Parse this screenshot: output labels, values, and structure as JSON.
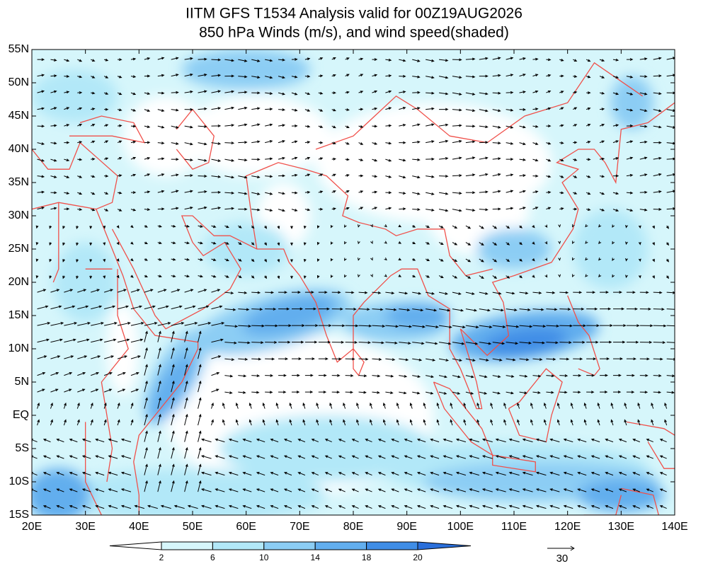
{
  "map": {
    "title": "IITM GFS T1534 Analysis valid for 00Z19AUG2026",
    "subtitle": "850 hPa Winds (m/s), and wind speed(shaded)",
    "xlim": [
      20,
      140
    ],
    "ylim": [
      -15,
      55
    ],
    "xticks": [
      {
        "value": 20,
        "label": "20E"
      },
      {
        "value": 30,
        "label": "30E"
      },
      {
        "value": 40,
        "label": "40E"
      },
      {
        "value": 50,
        "label": "50E"
      },
      {
        "value": 60,
        "label": "60E"
      },
      {
        "value": 70,
        "label": "70E"
      },
      {
        "value": 80,
        "label": "80E"
      },
      {
        "value": 90,
        "label": "90E"
      },
      {
        "value": 100,
        "label": "100E"
      },
      {
        "value": 110,
        "label": "110E"
      },
      {
        "value": 120,
        "label": "120E"
      },
      {
        "value": 130,
        "label": "130E"
      },
      {
        "value": 140,
        "label": "140E"
      }
    ],
    "yticks": [
      {
        "value": -15,
        "label": "15S"
      },
      {
        "value": -10,
        "label": "10S"
      },
      {
        "value": -5,
        "label": "5S"
      },
      {
        "value": 0,
        "label": "EQ"
      },
      {
        "value": 5,
        "label": "5N"
      },
      {
        "value": 10,
        "label": "10N"
      },
      {
        "value": 15,
        "label": "15N"
      },
      {
        "value": 20,
        "label": "20N"
      },
      {
        "value": 25,
        "label": "25N"
      },
      {
        "value": 30,
        "label": "30N"
      },
      {
        "value": 35,
        "label": "35N"
      },
      {
        "value": 40,
        "label": "40N"
      },
      {
        "value": 45,
        "label": "45N"
      },
      {
        "value": 50,
        "label": "50N"
      },
      {
        "value": 55,
        "label": "55N"
      }
    ],
    "colorbar": {
      "levels": [
        2,
        6,
        10,
        14,
        18,
        20
      ],
      "colors": [
        "#ffffff",
        "#d6f6fb",
        "#b2e8f8",
        "#8ccdf4",
        "#62aeee",
        "#3f8de6",
        "#2a6fdb"
      ]
    },
    "reference_vector": 30,
    "coastline_color": "#f0504a",
    "vector_color": "#000000"
  }
}
